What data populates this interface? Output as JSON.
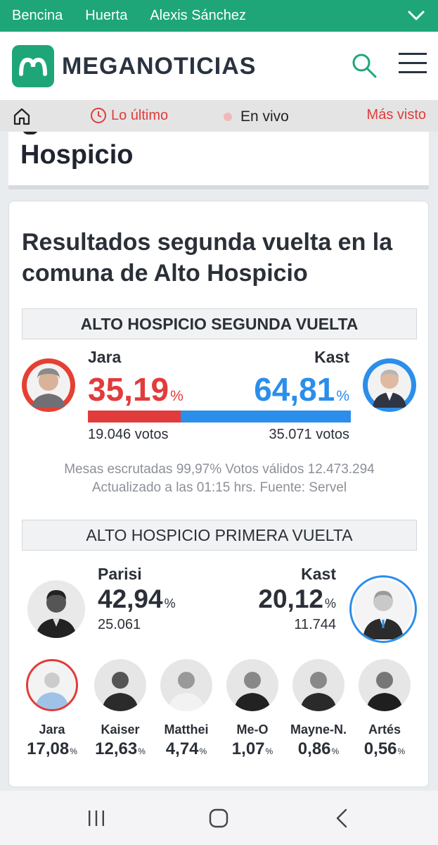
{
  "trending": {
    "tags": [
      "Bencina",
      "Huerta",
      "Alexis Sánchez"
    ]
  },
  "header": {
    "brand": "MEGANOTICIAS"
  },
  "nav": {
    "latest": "Lo último",
    "live": "En vivo",
    "most_viewed": "Más visto"
  },
  "headline": {
    "visible_text": "Hospicio"
  },
  "results": {
    "title": "Resultados segunda vuelta en la comuna de Alto Hospicio",
    "second_round": {
      "heading": "ALTO HOSPICIO SEGUNDA VUELTA",
      "percent_symbol": "%",
      "left": {
        "name": "Jara",
        "percent": "35,19",
        "votes": "19.046 votos",
        "share": 0.3519,
        "color": "#e23b3b"
      },
      "right": {
        "name": "Kast",
        "percent": "64,81",
        "votes": "35.071 votos",
        "share": 0.6481,
        "color": "#2b8eea"
      },
      "meta_line1": "Mesas escrutadas 99,97% Votos válidos 12.473.294",
      "meta_line2": "Actualizado a las 01:15 hrs. Fuente: Servel"
    },
    "first_round": {
      "heading": "ALTO HOSPICIO PRIMERA VUELTA",
      "percent_symbol": "%",
      "first": {
        "name": "Parisi",
        "percent": "42,94",
        "votes": "25.061"
      },
      "second": {
        "name": "Kast",
        "percent": "20,12",
        "votes": "11.744"
      },
      "others": [
        {
          "name": "Jara",
          "percent": "17,08"
        },
        {
          "name": "Kaiser",
          "percent": "12,63"
        },
        {
          "name": "Matthei",
          "percent": "4,74"
        },
        {
          "name": "Me-O",
          "percent": "1,07"
        },
        {
          "name": "Mayne-N.",
          "percent": "0,86"
        },
        {
          "name": "Artés",
          "percent": "0,56"
        }
      ]
    }
  },
  "icons": {
    "expand": "chevron-down-icon",
    "search": "search-icon",
    "menu": "hamburger-menu-icon",
    "home": "home-icon",
    "clock": "clock-icon"
  }
}
